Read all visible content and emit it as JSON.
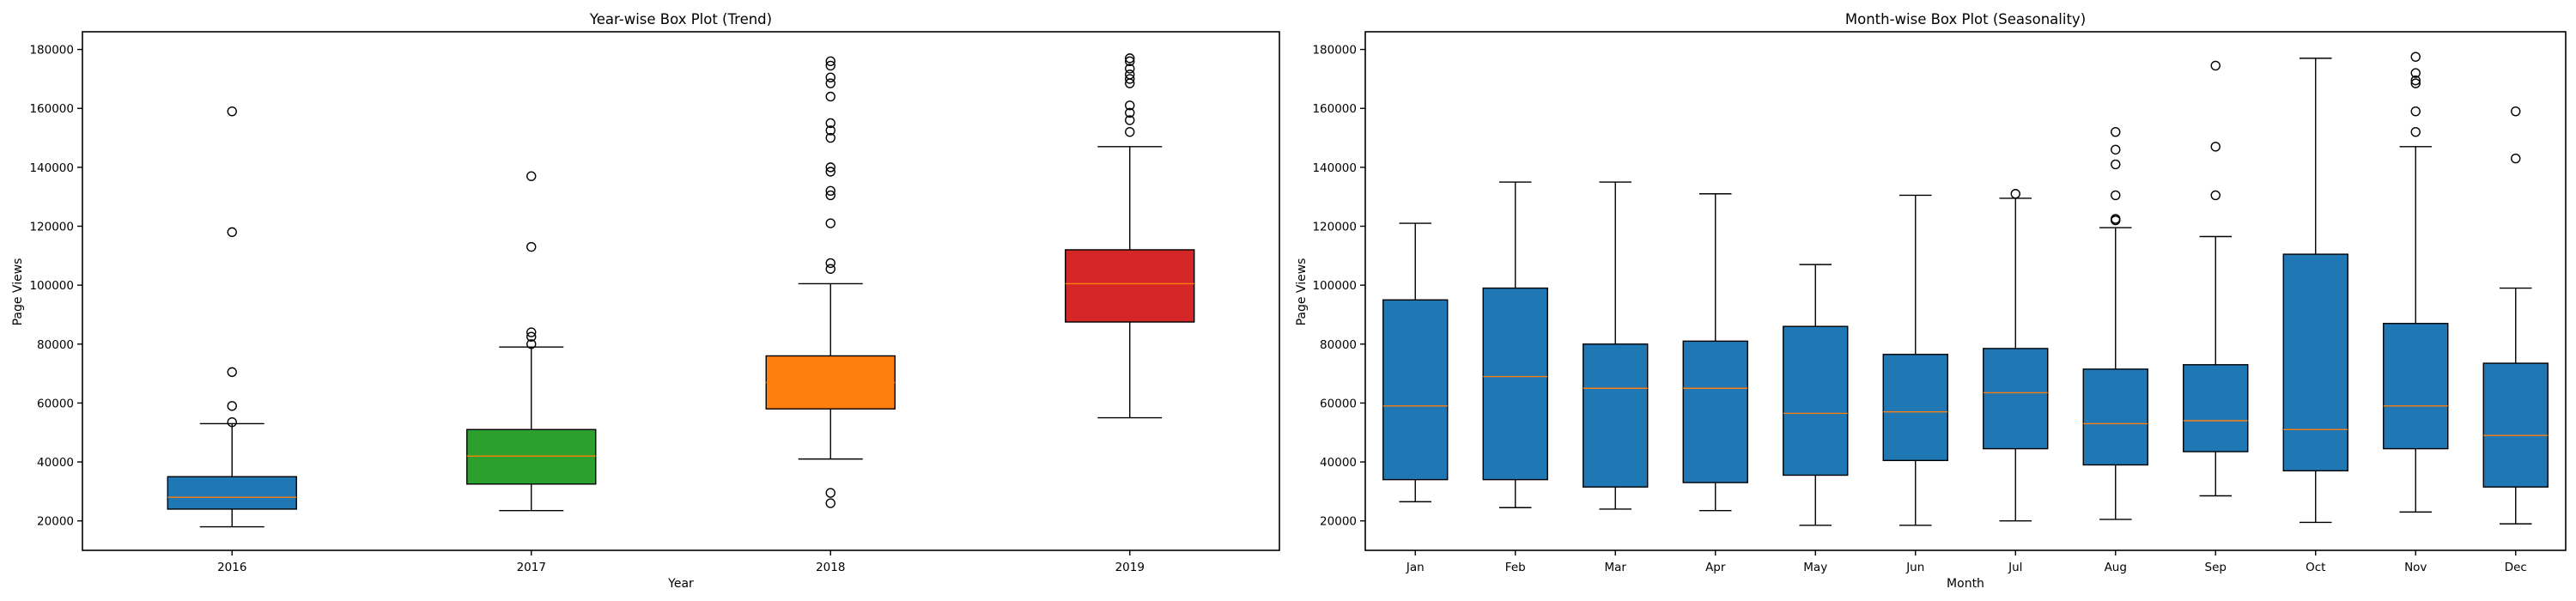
{
  "chart_data": [
    {
      "type": "box",
      "title": "Year-wise Box Plot (Trend)",
      "xlabel": "Year",
      "ylabel": "Page Views",
      "ylim": [
        10000,
        186000
      ],
      "yticks": [
        20000,
        40000,
        60000,
        80000,
        100000,
        120000,
        140000,
        160000,
        180000
      ],
      "categories": [
        "2016",
        "2017",
        "2018",
        "2019"
      ],
      "colors": [
        "#1f77b4",
        "#2ca02c",
        "#ff7f0e",
        "#d62728"
      ],
      "boxes": [
        {
          "whislo": 18000,
          "q1": 24000,
          "med": 28000,
          "q3": 35000,
          "whishi": 53000,
          "fliers": [
            53500,
            59000,
            70500,
            118000,
            159000
          ]
        },
        {
          "whislo": 23500,
          "q1": 32500,
          "med": 42000,
          "q3": 51000,
          "whishi": 79000,
          "fliers": [
            80000,
            82500,
            84000,
            113000,
            137000
          ]
        },
        {
          "whislo": 41000,
          "q1": 58000,
          "med": 67000,
          "q3": 76000,
          "whishi": 100500,
          "fliers": [
            26000,
            29500,
            105500,
            107500,
            121000,
            130500,
            132000,
            138500,
            140000,
            150000,
            152500,
            155000,
            164000,
            168500,
            170500,
            174500,
            176000
          ]
        },
        {
          "whislo": 55000,
          "q1": 87500,
          "med": 100500,
          "q3": 112000,
          "whishi": 147000,
          "fliers": [
            152000,
            156000,
            158500,
            161000,
            168500,
            170000,
            171500,
            173500,
            176000,
            177000
          ]
        }
      ]
    },
    {
      "type": "box",
      "title": "Month-wise Box Plot (Seasonality)",
      "xlabel": "Month",
      "ylabel": "Page Views",
      "ylim": [
        10000,
        186000
      ],
      "yticks": [
        20000,
        40000,
        60000,
        80000,
        100000,
        120000,
        140000,
        160000,
        180000
      ],
      "categories": [
        "Jan",
        "Feb",
        "Mar",
        "Apr",
        "May",
        "Jun",
        "Jul",
        "Aug",
        "Sep",
        "Oct",
        "Nov",
        "Dec"
      ],
      "colors": [
        "#1f77b4"
      ],
      "boxes": [
        {
          "whislo": 26500,
          "q1": 34000,
          "med": 59000,
          "q3": 95000,
          "whishi": 121000,
          "fliers": []
        },
        {
          "whislo": 24500,
          "q1": 34000,
          "med": 69000,
          "q3": 99000,
          "whishi": 135000,
          "fliers": []
        },
        {
          "whislo": 24000,
          "q1": 31500,
          "med": 65000,
          "q3": 80000,
          "whishi": 135000,
          "fliers": []
        },
        {
          "whislo": 23500,
          "q1": 33000,
          "med": 65000,
          "q3": 81000,
          "whishi": 131000,
          "fliers": []
        },
        {
          "whislo": 18500,
          "q1": 35500,
          "med": 56500,
          "q3": 86000,
          "whishi": 107000,
          "fliers": []
        },
        {
          "whislo": 18500,
          "q1": 40500,
          "med": 57000,
          "q3": 76500,
          "whishi": 130500,
          "fliers": []
        },
        {
          "whislo": 20000,
          "q1": 44500,
          "med": 63500,
          "q3": 78500,
          "whishi": 129500,
          "fliers": [
            131000
          ]
        },
        {
          "whislo": 20500,
          "q1": 39000,
          "med": 53000,
          "q3": 71500,
          "whishi": 119500,
          "fliers": [
            122000,
            122500,
            130500,
            141000,
            146000,
            152000
          ]
        },
        {
          "whislo": 28500,
          "q1": 43500,
          "med": 54000,
          "q3": 73000,
          "whishi": 116500,
          "fliers": [
            130500,
            147000,
            174500
          ]
        },
        {
          "whislo": 19500,
          "q1": 37000,
          "med": 51000,
          "q3": 110500,
          "whishi": 177000,
          "fliers": []
        },
        {
          "whislo": 23000,
          "q1": 44500,
          "med": 59000,
          "q3": 87000,
          "whishi": 147000,
          "fliers": [
            152000,
            159000,
            168500,
            169500,
            172000,
            177500
          ]
        },
        {
          "whislo": 19000,
          "q1": 31500,
          "med": 49000,
          "q3": 73500,
          "whishi": 99000,
          "fliers": [
            143000,
            159000
          ]
        }
      ]
    }
  ]
}
